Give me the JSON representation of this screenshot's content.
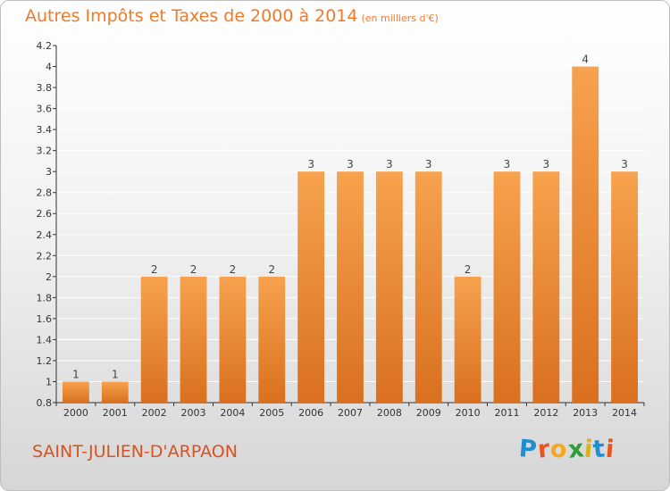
{
  "header": {
    "title": "Autres Impôts et Taxes de 2000 à 2014",
    "unit_note": "(en milliers d'€)"
  },
  "footer": {
    "town": "SAINT-JULIEN-D'ARPAON",
    "logo_text": "Proxiti",
    "logo_letters": [
      {
        "ch": "P",
        "color": "#1f8fcf"
      },
      {
        "ch": "r",
        "color": "#e8561f"
      },
      {
        "ch": "o",
        "color": "#f5a81c"
      },
      {
        "ch": "x",
        "color": "#2e9d3a"
      },
      {
        "ch": "i",
        "color": "#d9b21b"
      },
      {
        "ch": "t",
        "color": "#1f8fcf"
      },
      {
        "ch": "i",
        "color": "#e8561f"
      }
    ]
  },
  "colors": {
    "bar_top": "#f7a24e",
    "bar_bottom": "#d9701f",
    "accent": "#f07a2a",
    "grid": "#ffffff",
    "axis": "#333333"
  },
  "chart_data": {
    "type": "bar",
    "title": "Autres Impôts et Taxes de 2000 à 2014",
    "subtitle": "(en milliers d'€)",
    "categories": [
      "2000",
      "2001",
      "2002",
      "2003",
      "2004",
      "2005",
      "2006",
      "2007",
      "2008",
      "2009",
      "2010",
      "2011",
      "2012",
      "2013",
      "2014"
    ],
    "values": [
      1,
      1,
      2,
      2,
      2,
      2,
      3,
      3,
      3,
      3,
      2,
      3,
      3,
      4,
      3
    ],
    "data_labels": [
      "1",
      "1",
      "2",
      "2",
      "2",
      "2",
      "3",
      "3",
      "3",
      "3",
      "2",
      "3",
      "3",
      "4",
      "3"
    ],
    "ylim": [
      0.8,
      4.2
    ],
    "yticks": [
      "0.8",
      "1",
      "1.2",
      "1.4",
      "1.6",
      "1.8",
      "2",
      "2.2",
      "2.4",
      "2.6",
      "2.8",
      "3",
      "3.2",
      "3.4",
      "3.6",
      "3.8",
      "4",
      "4.2"
    ],
    "grid": "horizontal",
    "legend": "none"
  }
}
